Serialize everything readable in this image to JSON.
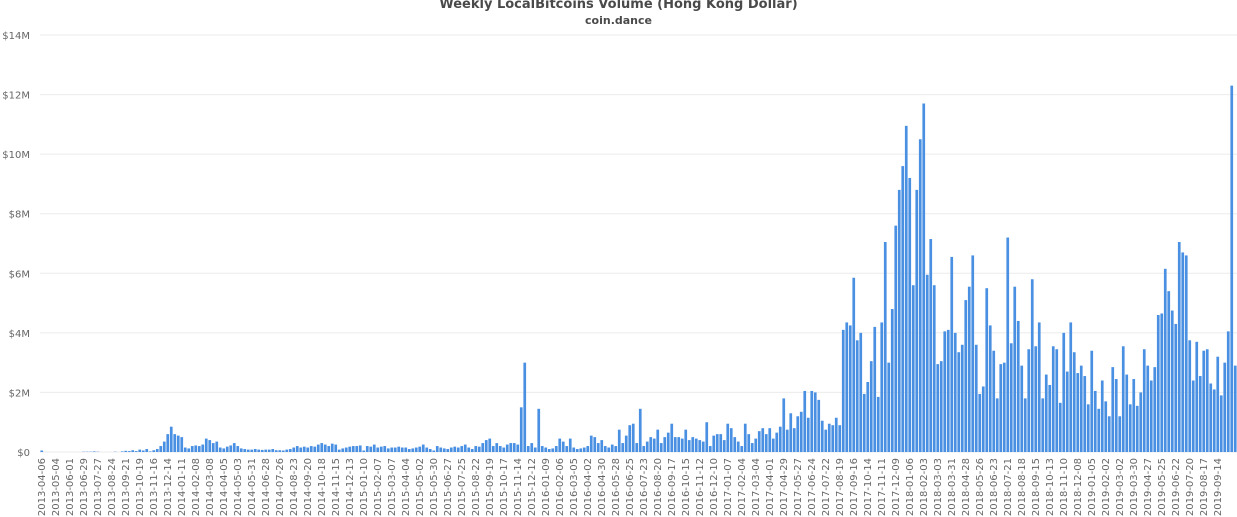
{
  "chart_data": {
    "type": "bar",
    "title": "Weekly LocalBitcoins Volume (Hong Kong Dollar)",
    "subtitle": "coin.dance",
    "xlabel": "",
    "ylabel": "",
    "ylim": [
      0,
      14000000
    ],
    "y_ticks": [
      "$0",
      "$2M",
      "$4M",
      "$6M",
      "$8M",
      "$10M",
      "$12M",
      "$14M"
    ],
    "grid": true,
    "legend": "none",
    "bar_color": "#4a90e2",
    "start_week": "2013-04-06",
    "week_interval_days": 7,
    "x_tick_every_n_weeks": 4,
    "x_tick_labels": [
      "2013-04-06",
      "2013-05-04",
      "2013-06-01",
      "2013-06-29",
      "2013-07-27",
      "2013-08-24",
      "2013-09-21",
      "2013-10-19",
      "2013-11-16",
      "2013-12-14",
      "2014-01-11",
      "2014-02-08",
      "2014-03-08",
      "2014-04-05",
      "2014-05-03",
      "2014-05-31",
      "2014-06-28",
      "2014-07-26",
      "2014-08-23",
      "2014-09-20",
      "2014-10-18",
      "2014-11-15",
      "2014-12-13",
      "2015-01-10",
      "2015-02-07",
      "2015-03-07",
      "2015-04-04",
      "2015-05-02",
      "2015-05-30",
      "2015-06-27",
      "2015-07-25",
      "2015-08-22",
      "2015-09-19",
      "2015-10-17",
      "2015-11-14",
      "2015-12-12",
      "2016-01-09",
      "2016-02-06",
      "2016-03-05",
      "2016-04-02",
      "2016-04-30",
      "2016-05-28",
      "2016-06-25",
      "2016-07-23",
      "2016-08-20",
      "2016-09-17",
      "2016-10-15",
      "2016-11-12",
      "2016-12-10",
      "2017-01-07",
      "2017-02-04",
      "2017-03-04",
      "2017-04-01",
      "2017-04-29",
      "2017-05-27",
      "2017-06-24",
      "2017-07-22",
      "2017-08-19",
      "2017-09-16",
      "2017-10-14",
      "2017-11-11",
      "2017-12-09",
      "2018-01-06",
      "2018-02-03",
      "2018-03-03",
      "2018-03-31",
      "2018-04-28",
      "2018-05-26",
      "2018-06-23",
      "2018-07-21",
      "2018-08-18",
      "2018-09-15",
      "2018-10-13",
      "2018-11-10",
      "2018-12-08",
      "2019-01-05",
      "2019-02-02",
      "2019-03-02",
      "2019-03-30",
      "2019-04-27",
      "2019-05-25",
      "2019-06-22",
      "2019-07-20",
      "2019-08-17",
      "2019-09-14"
    ],
    "units": "HKD millions",
    "values": [
      0.05,
      0,
      0,
      0,
      0,
      0,
      0,
      0,
      0,
      0,
      0,
      0,
      0.01,
      0.01,
      0.01,
      0.02,
      0.01,
      0,
      0,
      0,
      0,
      0.01,
      0,
      0.02,
      0.04,
      0.03,
      0.06,
      0.03,
      0.08,
      0.05,
      0.1,
      0.02,
      0.06,
      0.1,
      0.2,
      0.35,
      0.6,
      0.85,
      0.6,
      0.55,
      0.5,
      0.15,
      0.12,
      0.2,
      0.22,
      0.2,
      0.25,
      0.45,
      0.4,
      0.3,
      0.35,
      0.15,
      0.12,
      0.18,
      0.22,
      0.3,
      0.2,
      0.12,
      0.1,
      0.08,
      0.08,
      0.1,
      0.08,
      0.07,
      0.08,
      0.08,
      0.1,
      0.06,
      0.06,
      0.05,
      0.08,
      0.1,
      0.15,
      0.2,
      0.15,
      0.18,
      0.15,
      0.2,
      0.18,
      0.25,
      0.3,
      0.25,
      0.2,
      0.28,
      0.25,
      0.08,
      0.12,
      0.15,
      0.18,
      0.2,
      0.2,
      0.22,
      0.05,
      0.2,
      0.18,
      0.25,
      0.15,
      0.18,
      0.2,
      0.12,
      0.15,
      0.15,
      0.18,
      0.15,
      0.15,
      0.1,
      0.12,
      0.15,
      0.18,
      0.25,
      0.15,
      0.1,
      0.05,
      0.2,
      0.15,
      0.12,
      0.1,
      0.15,
      0.18,
      0.15,
      0.2,
      0.25,
      0.15,
      0.1,
      0.2,
      0.18,
      0.3,
      0.4,
      0.45,
      0.2,
      0.3,
      0.2,
      0.15,
      0.25,
      0.3,
      0.3,
      0.25,
      1.5,
      3.0,
      0.2,
      0.3,
      0.15,
      1.45,
      0.2,
      0.15,
      0.1,
      0.12,
      0.2,
      0.45,
      0.35,
      0.2,
      0.45,
      0.15,
      0.1,
      0.12,
      0.15,
      0.2,
      0.55,
      0.5,
      0.3,
      0.4,
      0.2,
      0.15,
      0.25,
      0.2,
      0.75,
      0.3,
      0.55,
      0.9,
      0.95,
      0.3,
      1.45,
      0.2,
      0.35,
      0.5,
      0.45,
      0.75,
      0.3,
      0.5,
      0.65,
      0.95,
      0.5,
      0.5,
      0.45,
      0.75,
      0.4,
      0.5,
      0.45,
      0.4,
      0.35,
      1.0,
      0.2,
      0.55,
      0.6,
      0.6,
      0.4,
      0.95,
      0.8,
      0.5,
      0.35,
      0.2,
      0.95,
      0.6,
      0.3,
      0.45,
      0.7,
      0.8,
      0.6,
      0.8,
      0.45,
      0.65,
      0.85,
      1.8,
      0.75,
      1.3,
      0.8,
      1.2,
      1.35,
      2.05,
      1.15,
      2.05,
      2.0,
      1.75,
      1.05,
      0.75,
      0.95,
      0.9,
      1.15,
      0.9,
      4.1,
      4.35,
      4.25,
      5.85,
      3.75,
      4.0,
      1.95,
      2.35,
      3.05,
      4.2,
      1.85,
      4.35,
      7.05,
      3.0,
      4.8,
      7.6,
      8.8,
      9.6,
      10.95,
      9.2,
      5.6,
      8.8,
      10.5,
      11.7,
      5.95,
      7.15,
      5.6,
      2.95,
      3.05,
      4.05,
      4.1,
      6.55,
      4.0,
      3.35,
      3.6,
      5.1,
      5.55,
      6.6,
      3.6,
      1.95,
      2.2,
      5.5,
      4.25,
      3.4,
      1.8,
      2.95,
      3.0,
      7.2,
      3.65,
      5.55,
      4.4,
      2.9,
      1.8,
      3.45,
      5.8,
      3.55,
      4.35,
      1.8,
      2.6,
      2.25,
      3.55,
      3.45,
      1.65,
      4.0,
      2.7,
      4.35,
      3.35,
      2.65,
      2.9,
      2.55,
      1.6,
      3.4,
      2.05,
      1.45,
      2.4,
      1.7,
      1.2,
      2.85,
      2.45,
      1.2,
      3.55,
      2.6,
      1.6,
      2.45,
      1.55,
      2.0,
      3.45,
      2.9,
      2.4,
      2.85,
      4.6,
      4.65,
      6.15,
      5.4,
      4.75,
      4.3,
      7.05,
      6.7,
      6.6,
      3.75,
      2.4,
      3.7,
      2.55,
      3.4,
      3.45,
      2.3,
      2.1,
      3.2,
      1.9,
      3.0,
      4.05,
      12.3,
      2.9
    ]
  }
}
